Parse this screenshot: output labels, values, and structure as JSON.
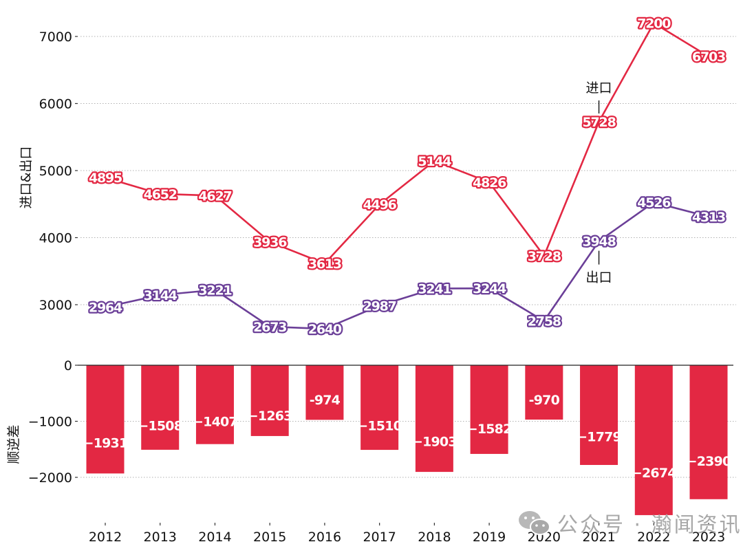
{
  "colors": {
    "import": "#e32843",
    "export": "#6b3f98",
    "bar": "#e32843",
    "axis": "#222222",
    "grid": "#b0b0b0"
  },
  "chart_data": [
    {
      "type": "line",
      "title": "",
      "xlabel": "",
      "ylabel": "进口&出口",
      "x": [
        "2012",
        "2013",
        "2014",
        "2015",
        "2016",
        "2017",
        "2018",
        "2019",
        "2020",
        "2021",
        "2022",
        "2023"
      ],
      "yticks": [
        3000,
        4000,
        5000,
        6000,
        7000
      ],
      "ylim": [
        2420,
        7230
      ],
      "grid": true,
      "series": [
        {
          "name": "进口",
          "color": "#e32843",
          "values": [
            4895,
            4652,
            4627,
            3936,
            3613,
            4496,
            5144,
            4826,
            3728,
            5728,
            7200,
            6703
          ]
        },
        {
          "name": "出口",
          "color": "#6b3f98",
          "values": [
            2964,
            3144,
            3221,
            2673,
            2640,
            2987,
            3241,
            3244,
            2758,
            3948,
            4526,
            4313
          ]
        }
      ],
      "annotations": [
        {
          "text": "进口",
          "series": "进口",
          "x": "2021",
          "position": "above"
        },
        {
          "text": "出口",
          "series": "出口",
          "x": "2021",
          "position": "below"
        }
      ]
    },
    {
      "type": "bar",
      "title": "",
      "xlabel": "",
      "ylabel": "顺逆差",
      "categories": [
        "2012",
        "2013",
        "2014",
        "2015",
        "2016",
        "2017",
        "2018",
        "2019",
        "2020",
        "2021",
        "2022",
        "2023"
      ],
      "values": [
        -1931,
        -1508,
        -1407,
        -1263,
        -974,
        -1510,
        -1903,
        -1582,
        -970,
        -1779,
        -2674,
        -2390
      ],
      "yticks": [
        0,
        -1000,
        -2000
      ],
      "ylim": [
        -2700,
        0
      ],
      "grid": true,
      "color": "#e32843"
    }
  ],
  "watermark": {
    "icon": "wechat-icon",
    "text": "公众号 · 瀚闻资讯"
  }
}
